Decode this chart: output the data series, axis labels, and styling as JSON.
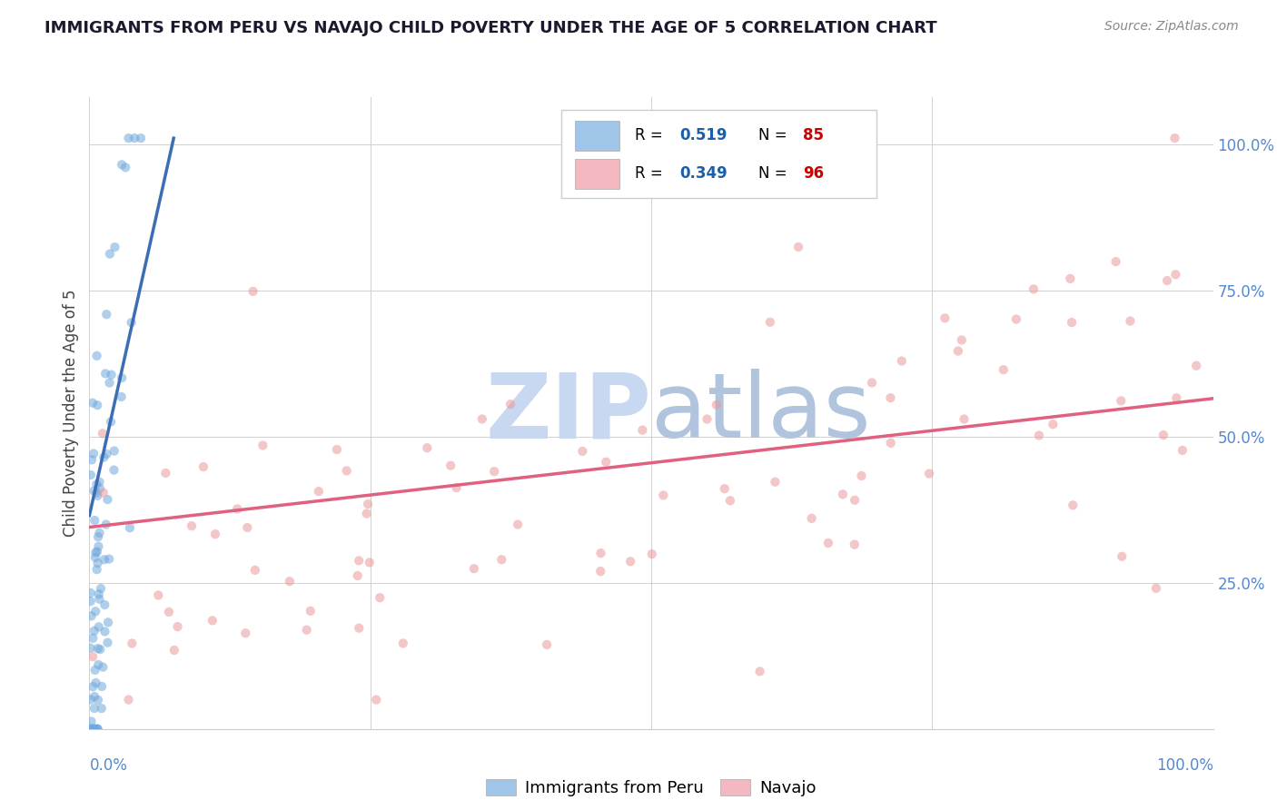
{
  "title": "IMMIGRANTS FROM PERU VS NAVAJO CHILD POVERTY UNDER THE AGE OF 5 CORRELATION CHART",
  "source": "Source: ZipAtlas.com",
  "ylabel": "Child Poverty Under the Age of 5",
  "watermark": "ZIPatlas",
  "ytick_positions": [
    0.25,
    0.5,
    0.75,
    1.0
  ],
  "ytick_labels": [
    "25.0%",
    "50.0%",
    "75.0%",
    "100.0%"
  ],
  "xtick_positions": [
    0.0,
    1.0
  ],
  "xtick_labels": [
    "0.0%",
    "100.0%"
  ],
  "legend_peru_label": "Immigrants from Peru",
  "legend_navajo_label": "Navajo",
  "R_peru": "0.519",
  "N_peru": "85",
  "R_navajo": "0.349",
  "N_navajo": "96",
  "scatter_size": 55,
  "scatter_alpha": 0.55,
  "peru_color": "#6fa8dc",
  "navajo_color": "#ea9999",
  "peru_legend_color": "#9fc5e8",
  "navajo_legend_color": "#f4b8c1",
  "peru_line_color": "#3d6eb5",
  "navajo_line_color": "#e06080",
  "background_color": "#ffffff",
  "grid_color": "#cccccc",
  "title_color": "#1a1a2e",
  "source_color": "#888888",
  "watermark_color_zip": "#c8d8f0",
  "watermark_color_atlas": "#b0c4de",
  "R_value_color": "#1a5fa8",
  "N_value_color": "#cc0000",
  "ylabel_color": "#444444",
  "axis_label_color": "#5588cc",
  "peru_line_x0": 0.0,
  "peru_line_x1": 0.075,
  "peru_line_y0": 0.365,
  "peru_line_y1": 1.01,
  "navajo_line_x0": 0.0,
  "navajo_line_x1": 1.0,
  "navajo_line_y0": 0.345,
  "navajo_line_y1": 0.565
}
